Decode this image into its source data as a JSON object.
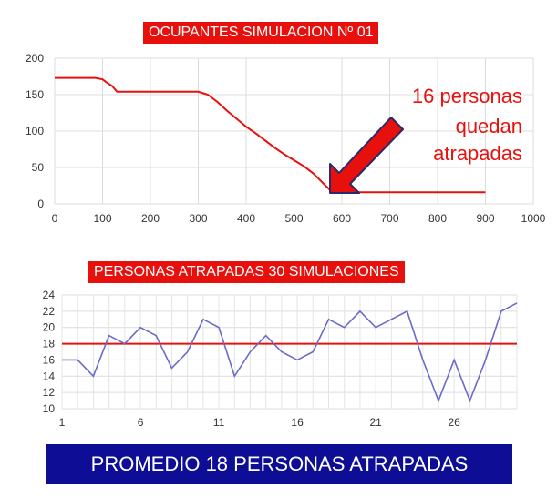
{
  "colors": {
    "red": "#e8100c",
    "blue": "#6a6ac8",
    "navy": "#0d0d96"
  },
  "banner": "PROMEDIO 18 PERSONAS ATRAPADAS",
  "chart_data": [
    {
      "type": "line",
      "title": "OCUPANTES SIMULACION Nº 01",
      "xlim": [
        0,
        1000
      ],
      "ylim": [
        0,
        200
      ],
      "xticks": [
        "0",
        "100",
        "200",
        "300",
        "400",
        "500",
        "600",
        "700",
        "800",
        "900",
        "1000"
      ],
      "yticks": [
        "0",
        "50",
        "100",
        "150",
        "200"
      ],
      "grid": true,
      "series": [
        {
          "x": [
            0,
            85,
            100,
            110,
            120,
            130,
            300,
            320,
            340,
            360,
            380,
            400,
            420,
            440,
            460,
            480,
            500,
            520,
            540,
            560,
            580,
            600,
            700,
            800,
            900
          ],
          "y": [
            173,
            173,
            171,
            166,
            162,
            154,
            154,
            150,
            140,
            128,
            117,
            106,
            97,
            87,
            77,
            68,
            60,
            52,
            42,
            29,
            16,
            16,
            16,
            16,
            16
          ]
        }
      ],
      "annotations": [
        "16 personas",
        "quedan",
        "atrapadas"
      ]
    },
    {
      "type": "line",
      "title": "PERSONAS ATRAPADAS 30 SIMULACIONES",
      "ylim": [
        10,
        24
      ],
      "yticks": [
        "10",
        "12",
        "14",
        "16",
        "18",
        "20",
        "22",
        "24"
      ],
      "xticks": [
        "1",
        "6",
        "11",
        "16",
        "21",
        "26"
      ],
      "grid": true,
      "series": [
        {
          "x": [
            1,
            2,
            3,
            4,
            5,
            6,
            7,
            8,
            9,
            10,
            11,
            12,
            13,
            14,
            15,
            16,
            17,
            18,
            19,
            20,
            21,
            23,
            24,
            25,
            26,
            27,
            28,
            29,
            30
          ],
          "y": [
            16,
            16,
            14,
            19,
            18,
            20,
            19,
            15,
            17,
            21,
            20,
            14,
            17,
            19,
            17,
            16,
            17,
            21,
            20,
            22,
            20,
            22,
            16,
            11,
            16,
            11,
            16,
            22,
            23
          ]
        },
        {
          "x": [
            1,
            30
          ],
          "y": [
            18,
            18
          ]
        }
      ]
    }
  ]
}
